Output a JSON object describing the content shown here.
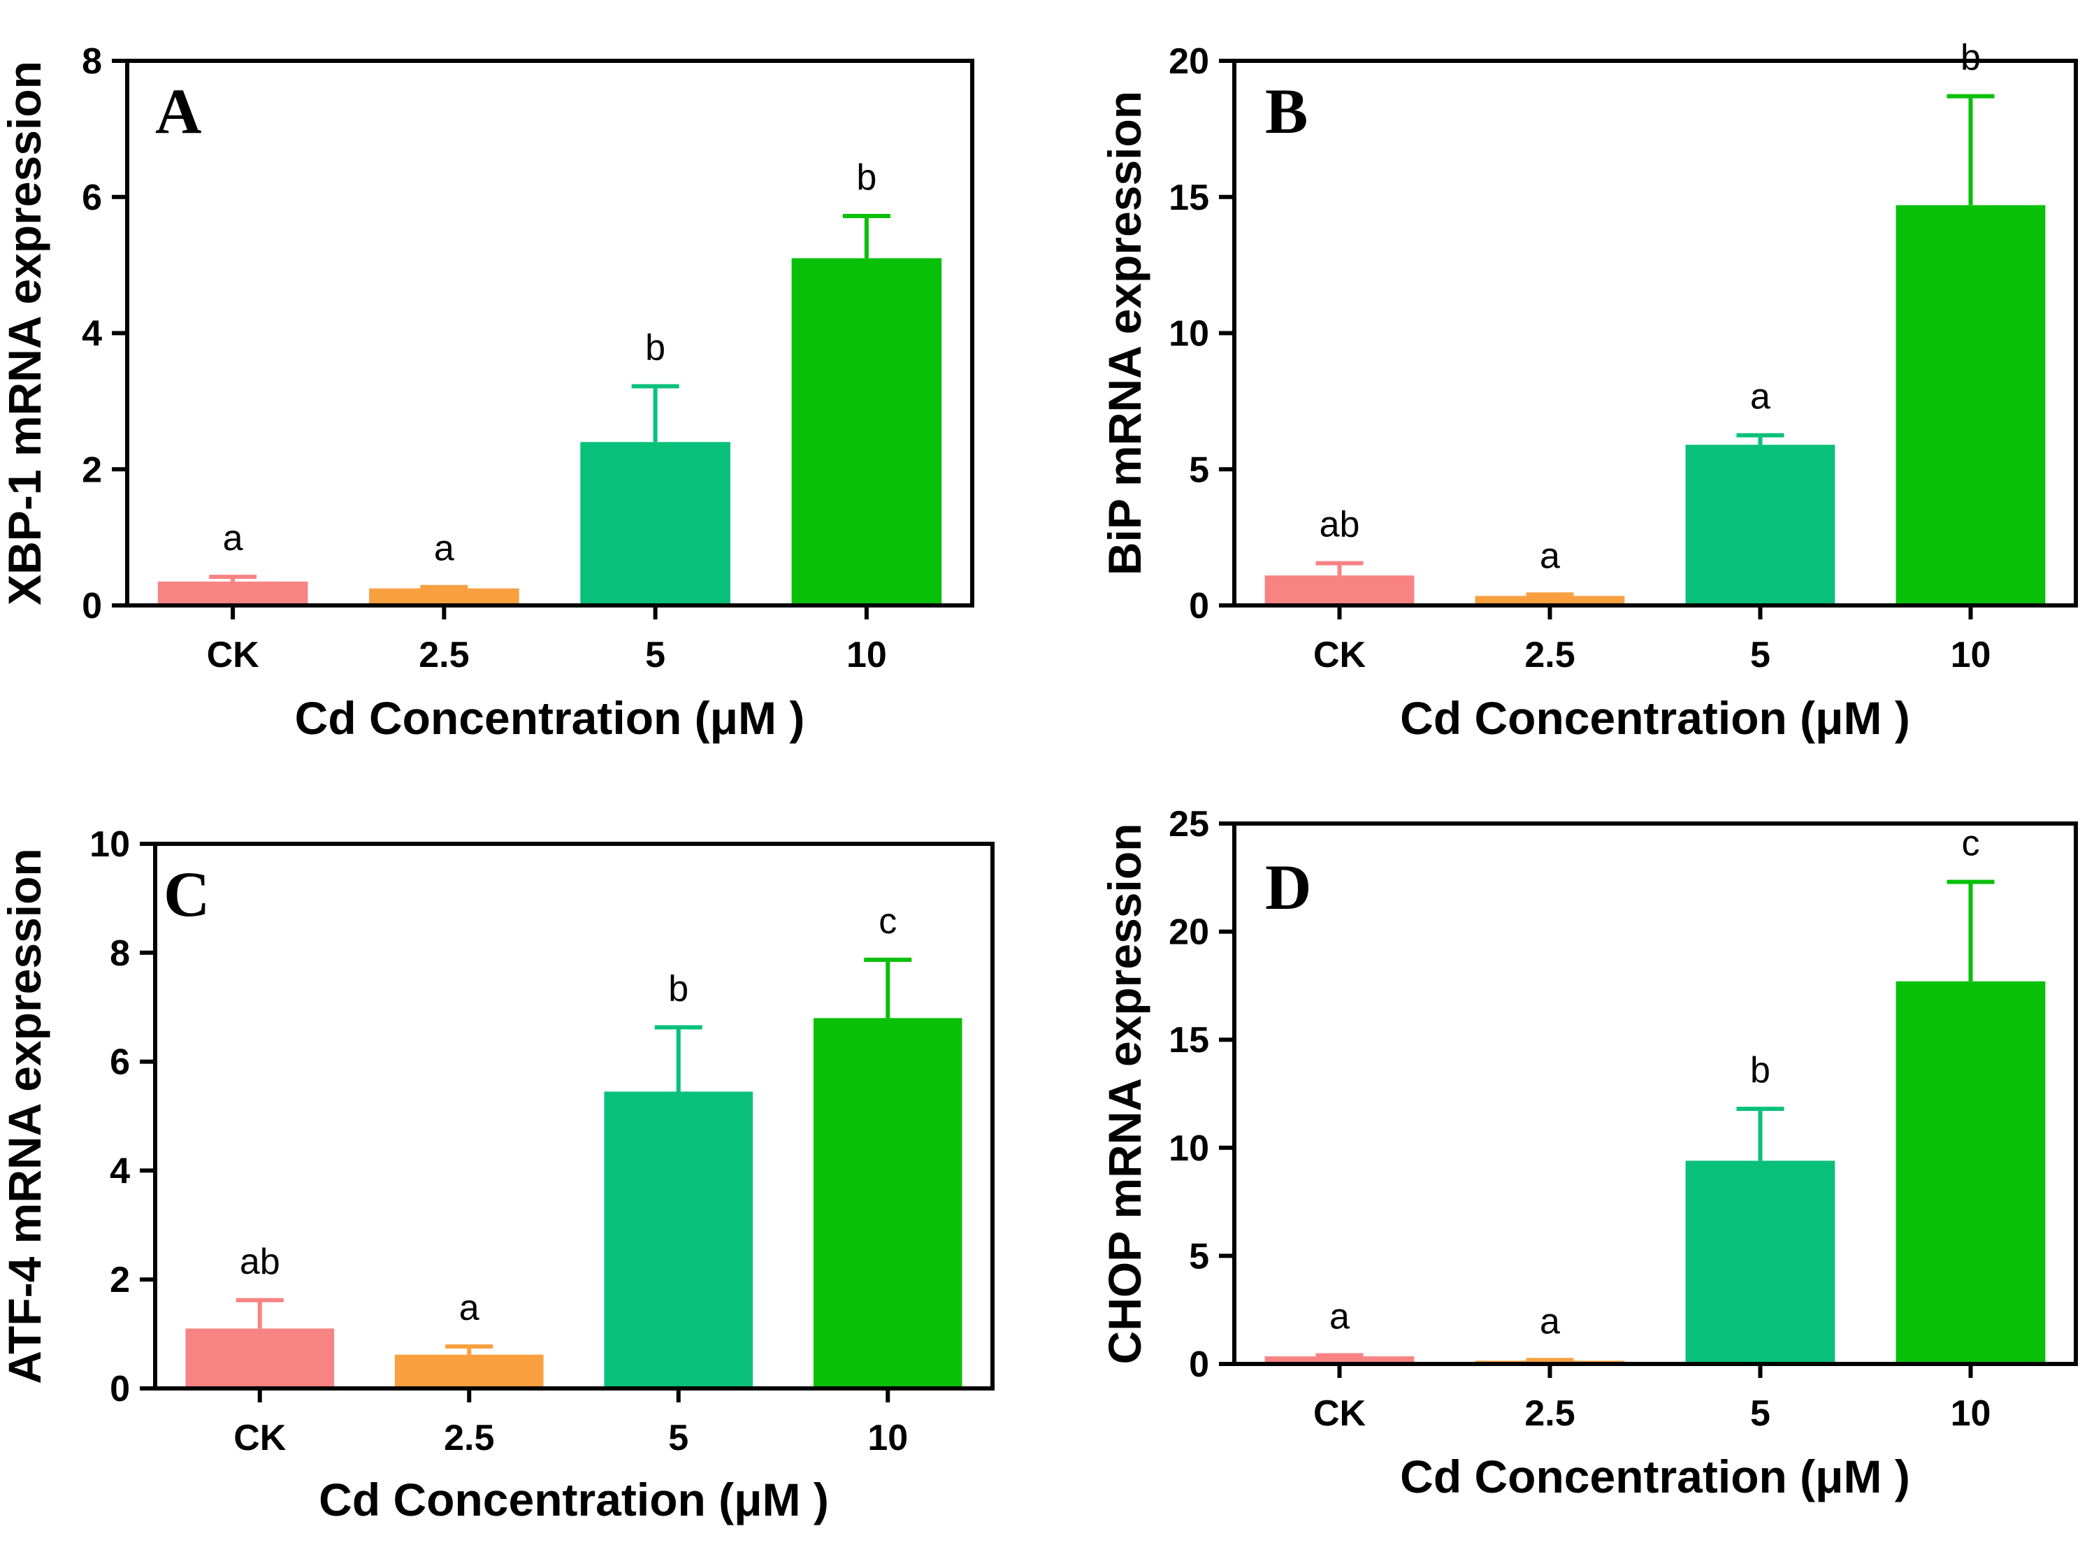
{
  "chart_data": [
    {
      "type": "bar",
      "panel": "A",
      "categories": [
        "CK",
        "2.5",
        "5",
        "10"
      ],
      "values": [
        0.35,
        0.25,
        2.4,
        5.1
      ],
      "errors": [
        0.07,
        0.02,
        0.82,
        0.62
      ],
      "significance": [
        "a",
        "a",
        "b",
        "b"
      ],
      "colors": [
        "#f88383",
        "#f8a040",
        "#08c07a",
        "#08c008"
      ],
      "xlabel": "Cd Concentration (μM )",
      "ylabel": "XBP-1 mRNA expression",
      "ylim": [
        0,
        8
      ],
      "yticks": [
        0,
        2,
        4,
        6,
        8
      ]
    },
    {
      "type": "bar",
      "panel": "B",
      "categories": [
        "CK",
        "2.5",
        "5",
        "10"
      ],
      "values": [
        1.1,
        0.35,
        5.9,
        14.7
      ],
      "errors": [
        0.45,
        0.05,
        0.35,
        4.0
      ],
      "significance": [
        "ab",
        "a",
        "a",
        "b"
      ],
      "colors": [
        "#f88383",
        "#f8a040",
        "#08c07a",
        "#08c008"
      ],
      "xlabel": "Cd Concentration (μM )",
      "ylabel": "BiP mRNA expression",
      "ylim": [
        0,
        20
      ],
      "yticks": [
        0,
        5,
        10,
        15,
        20
      ]
    },
    {
      "type": "bar",
      "panel": "C",
      "categories": [
        "CK",
        "2.5",
        "5",
        "10"
      ],
      "values": [
        1.1,
        0.62,
        5.45,
        6.8
      ],
      "errors": [
        0.52,
        0.15,
        1.18,
        1.07
      ],
      "significance": [
        "ab",
        "a",
        "b",
        "c"
      ],
      "colors": [
        "#f88383",
        "#f8a040",
        "#08c07a",
        "#08c008"
      ],
      "xlabel": "Cd Concentration (μM )",
      "ylabel": "ATF-4 mRNA expression",
      "ylim": [
        0,
        10
      ],
      "yticks": [
        0,
        2,
        4,
        6,
        8,
        10
      ]
    },
    {
      "type": "bar",
      "panel": "D",
      "categories": [
        "CK",
        "2.5",
        "5",
        "10"
      ],
      "values": [
        0.35,
        0.15,
        9.4,
        17.7
      ],
      "errors": [
        0.05,
        0.03,
        2.4,
        4.6
      ],
      "significance": [
        "a",
        "a",
        "b",
        "c"
      ],
      "colors": [
        "#f88383",
        "#f8a040",
        "#08c07a",
        "#08c008"
      ],
      "xlabel": "Cd Concentration (μM )",
      "ylabel": "CHOP mRNA expression",
      "ylim": [
        0,
        25
      ],
      "yticks": [
        0,
        5,
        10,
        15,
        20,
        25
      ]
    }
  ]
}
